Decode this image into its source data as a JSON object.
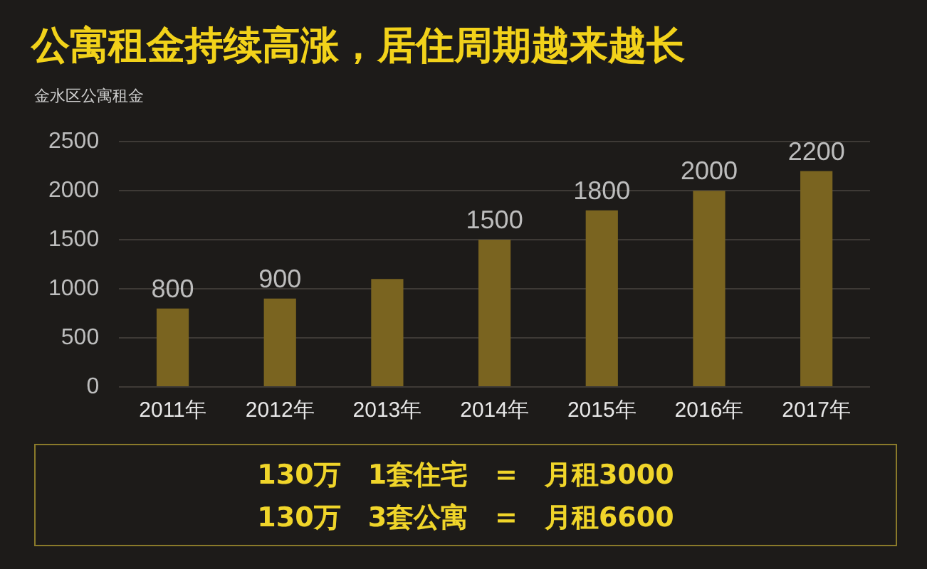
{
  "chart_data": {
    "type": "bar",
    "title": "公寓租金持续高涨，居住周期越来越长",
    "subtitle": "金水区公寓租金",
    "categories": [
      "2011年",
      "2012年",
      "2013年",
      "2014年",
      "2015年",
      "2016年",
      "2017年"
    ],
    "values": [
      800,
      900,
      1100,
      1500,
      1800,
      2000,
      2200
    ],
    "value_labels": [
      "800",
      "900",
      null,
      "1500",
      "1800",
      "2000",
      "2200"
    ],
    "color": "#7a6420",
    "ylim": [
      0,
      2500
    ],
    "yticks": [
      0,
      500,
      1000,
      1500,
      2000,
      2500
    ],
    "grid": "y",
    "annotations": [
      "130万　1套住宅　=　月租3000",
      "130万　3套公寓　=　月租6600"
    ]
  }
}
